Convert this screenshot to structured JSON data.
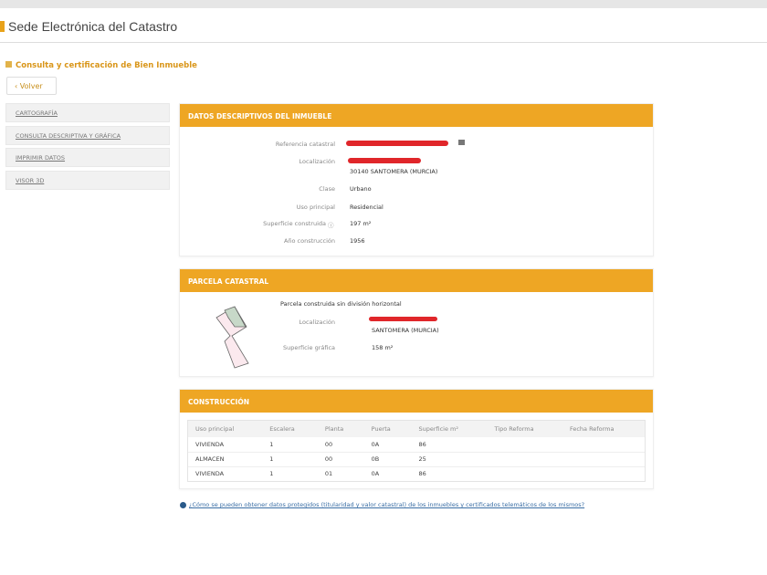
{
  "header": {
    "title": "Sede Electrónica del Catastro"
  },
  "breadcrumb": "Consulta y certificación de Bien Inmueble",
  "volver_label": "Volver",
  "sidebar": {
    "items": [
      {
        "label": "CARTOGRAFÍA"
      },
      {
        "label": "CONSULTA DESCRIPTIVA Y GRÁFICA"
      },
      {
        "label": "IMPRIMIR DATOS"
      },
      {
        "label": "VISOR 3D"
      }
    ]
  },
  "datos": {
    "title": "DATOS DESCRIPTIVOS DEL INMUEBLE",
    "ref_label": "Referencia catastral",
    "loc_label": "Localización",
    "loc_value": "30140 SANTOMERA (MURCIA)",
    "clase_label": "Clase",
    "clase_value": "Urbano",
    "uso_label": "Uso principal",
    "uso_value": "Residencial",
    "sup_label": "Superficie construida",
    "sup_value": "197 m²",
    "anio_label": "Año construcción",
    "anio_value": "1956"
  },
  "parcela": {
    "title": "PARCELA CATASTRAL",
    "subtitle": "Parcela construida sin división horizontal",
    "loc_label": "Localización",
    "loc_value": "SANTOMERA (MURCIA)",
    "sup_label": "Superficie gráfica",
    "sup_value": "158 m²"
  },
  "construccion": {
    "title": "CONSTRUCCIÓN",
    "columns": [
      "Uso principal",
      "Escalera",
      "Planta",
      "Puerta",
      "Superficie m²",
      "Tipo Reforma",
      "Fecha Reforma"
    ],
    "rows": [
      [
        "VIVIENDA",
        "1",
        "00",
        "0A",
        "86",
        "",
        ""
      ],
      [
        "ALMACEN",
        "1",
        "00",
        "0B",
        "25",
        "",
        ""
      ],
      [
        "VIVIENDA",
        "1",
        "01",
        "0A",
        "86",
        "",
        ""
      ]
    ]
  },
  "help_link": "¿Cómo se pueden obtener datos protegidos (titularidad y valor catastral) de los inmuebles y certificados telemáticos de los mismos?",
  "colors": {
    "accent": "#eea624",
    "link": "#3a6ea5"
  }
}
